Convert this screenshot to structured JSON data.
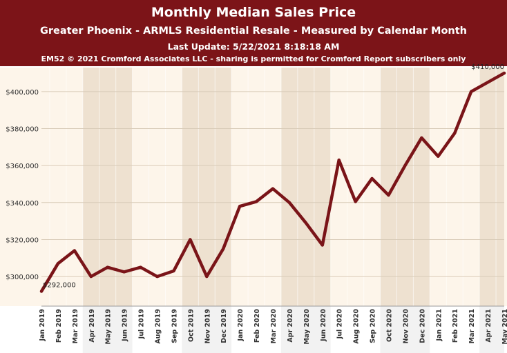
{
  "header": {
    "title": "Monthly Median Sales Price",
    "subtitle": "Greater Phoenix - ARMLS Residential Resale - Measured by Calendar Month",
    "update": "Last Update: 5/22/2021 8:18:18 AM",
    "copyright": "EM52 © 2021 Cromford Associates LLC - sharing is permitted for Cromford Report subscribers only"
  },
  "colors": {
    "header_bg": "#7c1418",
    "line": "#7a1418",
    "band_light": "#fdf5ea",
    "band_dark": "#eee1d0"
  },
  "chart_data": {
    "type": "line",
    "title": "Monthly Median Sales Price",
    "xlabel": "",
    "ylabel": "",
    "categories": [
      "Jan 2019",
      "Feb 2019",
      "Mar 2019",
      "Apr 2019",
      "May 2019",
      "Jun 2019",
      "Jul 2019",
      "Aug 2019",
      "Sep 2019",
      "Oct 2019",
      "Nov 2019",
      "Dec 2019",
      "Jan 2020",
      "Feb 2020",
      "Mar 2020",
      "Apr 2020",
      "May 2020",
      "Jun 2020",
      "Jul 2020",
      "Aug 2020",
      "Sep 2020",
      "Oct 2020",
      "Nov 2020",
      "Dec 2020",
      "Jan 2021",
      "Feb 2021",
      "Mar 2021",
      "Apr 2021",
      "May 2021"
    ],
    "series": [
      {
        "values": [
          292000,
          307000,
          314000,
          300000,
          305000,
          302500,
          305000,
          300000,
          303000,
          320000,
          300000,
          315000,
          338000,
          340500,
          347500,
          340000,
          329000,
          317000,
          363000,
          340500,
          353000,
          344000,
          360000,
          375000,
          365000,
          377500,
          400000,
          405000,
          410000
        ]
      }
    ],
    "yticks": [
      "$300,000",
      "$320,000",
      "$340,000",
      "$360,000",
      "$380,000",
      "$400,000"
    ],
    "ylim": [
      284000,
      413000
    ],
    "data_labels": [
      {
        "index": 0,
        "text": "$292,000"
      },
      {
        "index": 28,
        "text": "$410,000"
      }
    ],
    "grid": true
  }
}
